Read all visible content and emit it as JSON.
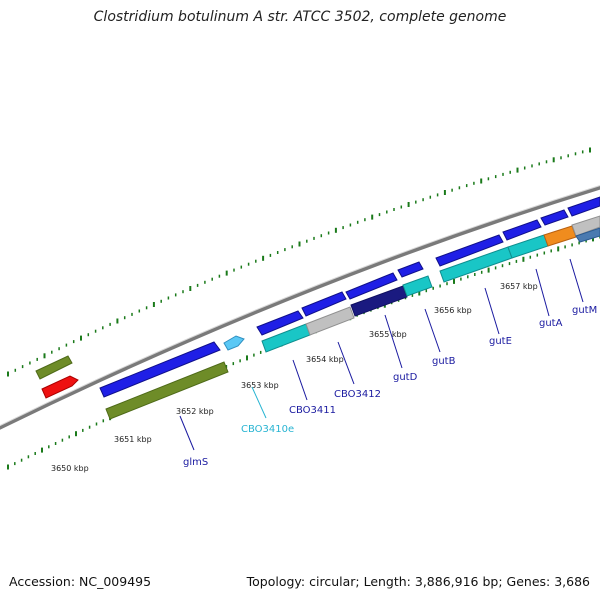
{
  "title": "Clostridium botulinum A str. ATCC 3502, complete genome",
  "footer": {
    "accession": "Accession: NC_009495",
    "summary": "Topology: circular; Length: 3,886,916 bp; Genes: 3,686"
  },
  "kbp_labels": [
    "3650 kbp",
    "3651 kbp",
    "3652 kbp",
    "3653 kbp",
    "3654 kbp",
    "3655 kbp",
    "3656 kbp",
    "3657 kbp"
  ],
  "gene_labels": {
    "glmS": "glmS",
    "cbo3410e": "CBO3410e",
    "cbo3411": "CBO3411",
    "cbo3412": "CBO3412",
    "gutD": "gutD",
    "gutB": "gutB",
    "gutE": "gutE",
    "gutA": "gutA",
    "gutM": "gutM"
  },
  "colors": {
    "backbone": "#8a8a8a",
    "ticks": "#1a7a1a",
    "cds_blue": "#1f1fe6",
    "cyan": "#19c6c6",
    "olive": "#6e8c28",
    "red": "#ee1111",
    "light_blue": "#5ac8f5",
    "gray": "#c0c0c0",
    "navy": "#1a1a80",
    "orange": "#f08c1e",
    "label_blue": "#1a1aa0",
    "label_cyan": "#28b4d2"
  }
}
